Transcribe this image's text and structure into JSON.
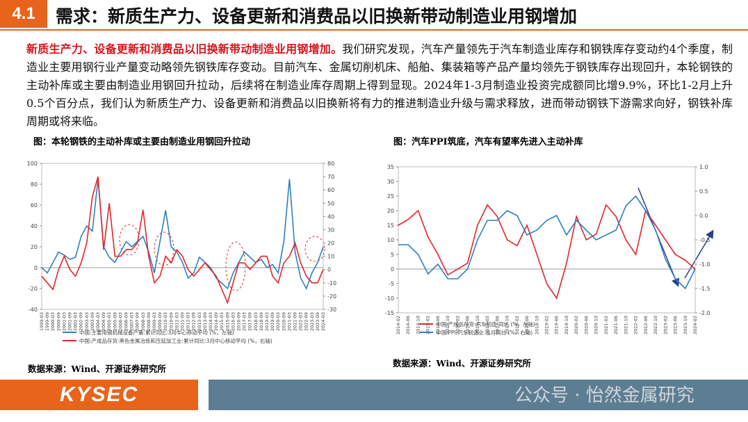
{
  "header": {
    "number": "4.1",
    "title": "需求：新质生产力、设备更新和消费品以旧换新带动制造业用钢增加"
  },
  "body": {
    "lead": "新质生产力、设备更新和消费品以旧换新带动制造业用钢增加。",
    "text": "我们研究发现，汽车产量领先于汽车制造业库存和钢铁库存变动约4个季度，制造业主要用钢行业产量变动略领先钢铁库存变动。目前汽车、金属切削机床、船舶、集装箱等产品产量均领先于钢铁库存出现回升，本轮钢铁的主动补库或主要由制造业用钢回升拉动，后续将在制造业库存周期上得到显现。2024年1-3月制造业投资完成额同比增9.9%，环比1-2月上升0.5个百分点，我们认为新质生产力、设备更新和消费品以旧换新将有力的推进制造业升级与需求释放，进而带动钢铁下游需求向好，钢铁补库周期或将来临。"
  },
  "figures": [
    {
      "title": "图：本轮钢铁的主动补库或主要由制造业用钢回升拉动",
      "source": "数据来源：Wind、开源证券研究所",
      "chart": {
        "type": "line",
        "x": [
          "1999-03",
          "1999-09",
          "2000-03",
          "2000-09",
          "2001-03",
          "2001-09",
          "2002-03",
          "2002-09",
          "2003-03",
          "2003-09",
          "2004-03",
          "2004-09",
          "2005-03",
          "2005-09",
          "2006-03",
          "2006-09",
          "2007-03",
          "2007-09",
          "2008-03",
          "2008-09",
          "2009-03",
          "2009-09",
          "2010-03",
          "2010-09",
          "2011-03",
          "2011-09",
          "2012-03",
          "2012-09",
          "2013-03",
          "2013-09",
          "2014-03",
          "2014-09",
          "2015-03",
          "2015-09",
          "2016-03",
          "2016-09",
          "2017-03",
          "2017-09",
          "2018-03",
          "2018-09",
          "2019-03",
          "2019-09",
          "2020-03",
          "2020-09",
          "2021-03",
          "2021-09",
          "2022-03",
          "2022-09",
          "2023-03",
          "2023-09",
          "2024-03"
        ],
        "ylim": [
          -40,
          100
        ],
        "yticks": [
          -40,
          -20,
          0,
          20,
          40,
          60,
          80,
          100
        ],
        "y2lim": [
          -30,
          80
        ],
        "y2ticks": [
          -30,
          -20,
          -10,
          0,
          10,
          20,
          30,
          40,
          50,
          60,
          70,
          80
        ],
        "series": [
          {
            "name": "中国:主要用钢机械设备产量:累计同比:3月中心移动平均 (%，左轴)",
            "color": "#2e7fbf",
            "axis": "y",
            "values": [
              0,
              -5,
              5,
              15,
              12,
              8,
              10,
              30,
              40,
              35,
              85,
              20,
              10,
              5,
              15,
              25,
              20,
              25,
              30,
              15,
              -5,
              25,
              55,
              20,
              15,
              5,
              -10,
              -5,
              10,
              5,
              0,
              -10,
              -15,
              -20,
              -5,
              5,
              15,
              10,
              5,
              8,
              0,
              3,
              -5,
              25,
              85,
              15,
              -10,
              -20,
              -5,
              5,
              20
            ]
          },
          {
            "name": "中国:产成品存货:黑色金属冶炼和压延加工业:累计同比:3月中心移动平均 (%，右轴)",
            "color": "#e0262a",
            "axis": "y2",
            "values": [
              -5,
              -10,
              -15,
              0,
              10,
              0,
              -5,
              5,
              20,
              55,
              70,
              15,
              50,
              10,
              10,
              15,
              15,
              20,
              45,
              10,
              -10,
              -5,
              10,
              5,
              15,
              10,
              0,
              -5,
              0,
              5,
              0,
              -5,
              -15,
              -25,
              -10,
              5,
              5,
              0,
              5,
              10,
              10,
              -5,
              -10,
              5,
              10,
              20,
              5,
              -5,
              -10,
              -10,
              0
            ]
          }
        ]
      }
    },
    {
      "title": "图：汽车PPI筑底，汽车有望率先进入主动补库",
      "source": "数据来源：Wind、开源证券研究所",
      "chart": {
        "type": "line",
        "x": [
          "2014-02",
          "2014-06",
          "2014-10",
          "2015-02",
          "2015-06",
          "2015-10",
          "2016-02",
          "2016-06",
          "2016-10",
          "2017-02",
          "2017-06",
          "2017-10",
          "2018-02",
          "2018-06",
          "2018-10",
          "2019-02",
          "2019-06",
          "2019-10",
          "2020-02",
          "2020-06",
          "2020-10",
          "2021-02",
          "2021-06",
          "2021-10",
          "2022-02",
          "2022-06",
          "2022-10",
          "2023-02",
          "2023-06",
          "2023-10",
          "2024-02"
        ],
        "ylim": [
          -15,
          35
        ],
        "yticks": [
          -15,
          -10,
          -5,
          0,
          5,
          10,
          15,
          20,
          25,
          30,
          35
        ],
        "y2lim": [
          -2,
          1
        ],
        "y2ticks": [
          {
            "value": -2,
            "label": "-2.0"
          },
          -1.5,
          {
            "value": -1,
            "label": "-1.0"
          },
          -0.5,
          {
            "value": 0,
            "label": "0.0"
          },
          0.5,
          {
            "value": 1,
            "label": "1.0"
          }
        ],
        "series": [
          {
            "name": "中国:产成品存货:汽车制造:同比 (%，左轴)",
            "color": "#e0262a",
            "axis": "y",
            "values": [
              15,
              17,
              20,
              11,
              5,
              -2,
              0,
              2,
              15,
              22,
              18,
              10,
              8,
              15,
              5,
              -5,
              -10,
              2,
              18,
              10,
              12,
              22,
              18,
              10,
              5,
              20,
              15,
              10,
              5,
              3,
              0
            ]
          },
          {
            "name": "中国:PPI:汽车制造业:当月同比 (%，右轴)",
            "color": "#2e7fbf",
            "axis": "y2",
            "values": [
              -0.6,
              -0.6,
              -0.8,
              -1.2,
              -1,
              -1.3,
              -1.3,
              -1.1,
              -0.5,
              -0.1,
              -0.1,
              0.1,
              0,
              -0.4,
              -0.3,
              -0.1,
              0,
              -0.4,
              -0.1,
              -0.3,
              -0.5,
              -0.4,
              -0.3,
              0.2,
              0.4,
              0.1,
              -0.3,
              -0.9,
              -1.3,
              -1.5,
              -1.1
            ]
          }
        ]
      }
    }
  ],
  "footer": {
    "logo": "KYSEC",
    "watermark": "公众号 · 怡然金属研究"
  }
}
